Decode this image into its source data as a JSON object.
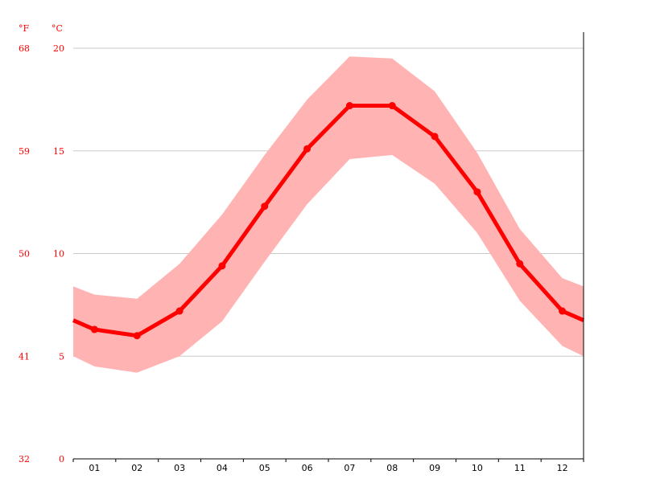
{
  "chart_data": {
    "type": "line",
    "units": {
      "left": "°F",
      "right": "°C"
    },
    "categories": [
      "01",
      "02",
      "03",
      "04",
      "05",
      "06",
      "07",
      "08",
      "09",
      "10",
      "11",
      "12"
    ],
    "ylim": [
      0,
      20
    ],
    "yticks_c": [
      "0",
      "5",
      "10",
      "15",
      "20"
    ],
    "yticks_f": [
      "32",
      "41",
      "50",
      "59",
      "68"
    ],
    "grid": true,
    "series": [
      {
        "values": [
          6.3,
          6.0,
          7.2,
          9.4,
          12.3,
          15.1,
          17.2,
          17.2,
          15.7,
          13.0,
          9.5,
          7.2
        ],
        "color": "#ff0000"
      }
    ],
    "range_band": {
      "max": [
        8.0,
        7.8,
        9.5,
        11.9,
        14.8,
        17.5,
        19.6,
        19.5,
        17.9,
        14.9,
        11.2,
        8.8
      ],
      "min": [
        4.5,
        4.2,
        5.0,
        6.7,
        9.6,
        12.4,
        14.6,
        14.8,
        13.4,
        11.0,
        7.7,
        5.5
      ],
      "color": "#ffb3b3"
    }
  }
}
